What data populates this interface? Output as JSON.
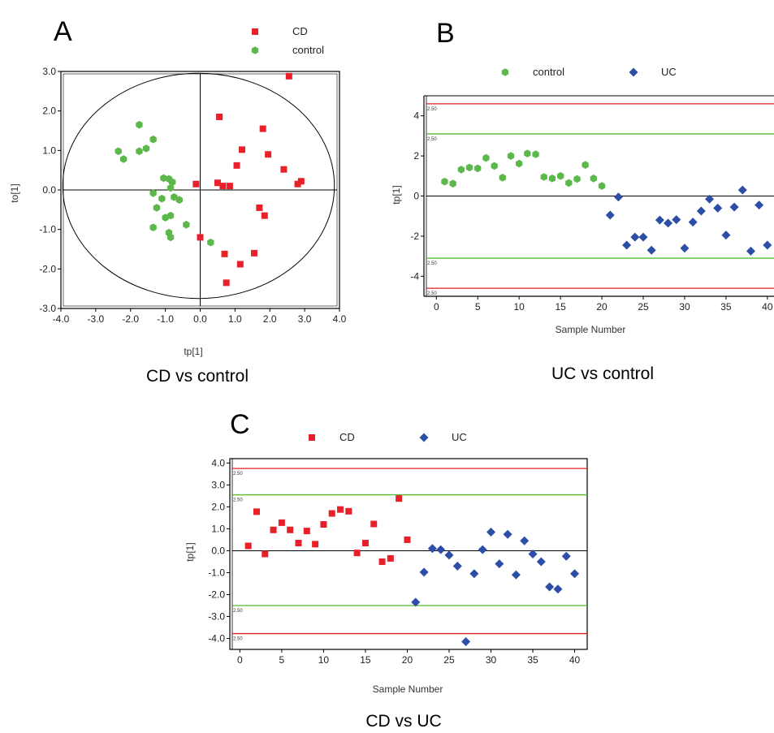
{
  "colors": {
    "CD": "#e8202a",
    "control": "#5cb84a",
    "UC": "#2d4ea6",
    "crit": "#e02020",
    "warn": "#55bb33"
  },
  "chart_data": [
    {
      "id": "A",
      "panel_label": "A",
      "caption": "CD vs control",
      "type": "scatter",
      "xlabel": "tp[1]",
      "ylabel": "to[1]",
      "xlim": [
        -4.0,
        4.0
      ],
      "ylim": [
        -3.0,
        3.0
      ],
      "xticks": [
        "-4.0",
        "-3.0",
        "-2.0",
        "-1.0",
        "0.0",
        "1.0",
        "2.0",
        "3.0",
        "4.0"
      ],
      "yticks": [
        "3.0",
        "2.0",
        "1.0",
        "0.0",
        "-1.0",
        "-2.0",
        "-3.0"
      ],
      "legend": [
        "CD",
        "control"
      ],
      "series": [
        {
          "name": "CD",
          "marker": "square",
          "points": [
            [
              2.55,
              2.88
            ],
            [
              0.55,
              1.85
            ],
            [
              1.8,
              1.55
            ],
            [
              1.2,
              1.02
            ],
            [
              1.95,
              0.9
            ],
            [
              1.05,
              0.62
            ],
            [
              2.4,
              0.52
            ],
            [
              2.9,
              0.22
            ],
            [
              2.8,
              0.15
            ],
            [
              0.5,
              0.18
            ],
            [
              0.65,
              0.1
            ],
            [
              0.85,
              0.1
            ],
            [
              -0.12,
              0.15
            ],
            [
              1.7,
              -0.45
            ],
            [
              1.85,
              -0.65
            ],
            [
              0.0,
              -1.2
            ],
            [
              0.7,
              -1.62
            ],
            [
              1.55,
              -1.6
            ],
            [
              1.15,
              -1.88
            ],
            [
              0.75,
              -2.35
            ]
          ]
        },
        {
          "name": "control",
          "marker": "hexagon",
          "points": [
            [
              -1.75,
              1.65
            ],
            [
              -1.35,
              1.28
            ],
            [
              -1.55,
              1.05
            ],
            [
              -1.75,
              0.98
            ],
            [
              -2.35,
              0.98
            ],
            [
              -2.2,
              0.78
            ],
            [
              -1.05,
              0.3
            ],
            [
              -0.9,
              0.28
            ],
            [
              -0.8,
              0.2
            ],
            [
              -0.85,
              0.05
            ],
            [
              -1.35,
              -0.08
            ],
            [
              -0.75,
              -0.18
            ],
            [
              -1.1,
              -0.22
            ],
            [
              -1.25,
              -0.45
            ],
            [
              -0.6,
              -0.25
            ],
            [
              -0.85,
              -0.65
            ],
            [
              -1.0,
              -0.7
            ],
            [
              -0.4,
              -0.88
            ],
            [
              -1.35,
              -0.95
            ],
            [
              -0.9,
              -1.08
            ],
            [
              -0.85,
              -1.2
            ],
            [
              0.3,
              -1.33
            ]
          ]
        }
      ]
    },
    {
      "id": "B",
      "panel_label": "B",
      "caption": "UC vs control",
      "type": "scatter",
      "xlabel": "Sample Number",
      "ylabel": "tp[1]",
      "xlim": [
        -1.5,
        40.8
      ],
      "ylim": [
        -5.0,
        5.0
      ],
      "xticks": [
        0,
        5,
        10,
        15,
        20,
        25,
        30,
        35,
        40
      ],
      "yticks": [
        4,
        2,
        0,
        -2,
        -4
      ],
      "legend": [
        "control",
        "UC"
      ],
      "red_lines": [
        4.6,
        -4.6
      ],
      "green_lines": [
        3.1,
        -3.1
      ],
      "line_marks": [
        "2.50",
        "2.50",
        "2.50",
        "2.50"
      ],
      "series": [
        {
          "name": "control",
          "marker": "hexagon",
          "points": [
            [
              1,
              0.72
            ],
            [
              2,
              0.62
            ],
            [
              3,
              1.32
            ],
            [
              4,
              1.42
            ],
            [
              5,
              1.38
            ],
            [
              6,
              1.9
            ],
            [
              7,
              1.5
            ],
            [
              8,
              0.92
            ],
            [
              9,
              2.0
            ],
            [
              10,
              1.62
            ],
            [
              11,
              2.12
            ],
            [
              12,
              2.08
            ],
            [
              13,
              0.95
            ],
            [
              14,
              0.88
            ],
            [
              15,
              1.0
            ],
            [
              16,
              0.65
            ],
            [
              17,
              0.85
            ],
            [
              18,
              1.55
            ],
            [
              19,
              0.88
            ],
            [
              20,
              0.5
            ]
          ]
        },
        {
          "name": "UC",
          "marker": "diamond",
          "points": [
            [
              21,
              -0.95
            ],
            [
              22,
              -0.05
            ],
            [
              23,
              -2.45
            ],
            [
              24,
              -2.05
            ],
            [
              25,
              -2.05
            ],
            [
              26,
              -2.7
            ],
            [
              27,
              -1.2
            ],
            [
              28,
              -1.35
            ],
            [
              29,
              -1.18
            ],
            [
              30,
              -2.6
            ],
            [
              31,
              -1.3
            ],
            [
              32,
              -0.75
            ],
            [
              33,
              -0.15
            ],
            [
              34,
              -0.6
            ],
            [
              35,
              -1.95
            ],
            [
              36,
              -0.55
            ],
            [
              37,
              0.3
            ],
            [
              38,
              -2.75
            ],
            [
              39,
              -0.45
            ],
            [
              40,
              -2.45
            ]
          ]
        }
      ]
    },
    {
      "id": "C",
      "panel_label": "C",
      "caption": "CD vs UC",
      "type": "scatter",
      "xlabel": "Sample Number",
      "ylabel": "tp[1]",
      "xlim": [
        -1.2,
        41.5
      ],
      "ylim": [
        -4.5,
        4.2
      ],
      "xticks": [
        0,
        5,
        10,
        15,
        20,
        25,
        30,
        35,
        40
      ],
      "yticks": [
        "4.0",
        "3.0",
        "2.0",
        "1.0",
        "0.0",
        "-1.0",
        "-2.0",
        "-3.0",
        "-4.0"
      ],
      "legend": [
        "CD",
        "UC"
      ],
      "red_lines": [
        3.75,
        -3.78
      ],
      "green_lines": [
        2.55,
        -2.5
      ],
      "line_marks": [
        "2.50",
        "2.50",
        "2.50",
        "2.50"
      ],
      "series": [
        {
          "name": "CD",
          "marker": "square",
          "points": [
            [
              1,
              0.22
            ],
            [
              2,
              1.78
            ],
            [
              3,
              -0.15
            ],
            [
              4,
              0.95
            ],
            [
              5,
              1.28
            ],
            [
              6,
              0.95
            ],
            [
              7,
              0.35
            ],
            [
              8,
              0.9
            ],
            [
              9,
              0.3
            ],
            [
              10,
              1.2
            ],
            [
              11,
              1.7
            ],
            [
              12,
              1.88
            ],
            [
              13,
              1.8
            ],
            [
              14,
              -0.1
            ],
            [
              15,
              0.35
            ],
            [
              16,
              1.22
            ],
            [
              17,
              -0.5
            ],
            [
              18,
              -0.35
            ],
            [
              19,
              2.38
            ],
            [
              20,
              0.5
            ]
          ]
        },
        {
          "name": "UC",
          "marker": "diamond",
          "points": [
            [
              21,
              -2.35
            ],
            [
              22,
              -0.98
            ],
            [
              23,
              0.1
            ],
            [
              24,
              0.05
            ],
            [
              25,
              -0.2
            ],
            [
              26,
              -0.7
            ],
            [
              27,
              -4.15
            ],
            [
              28,
              -1.05
            ],
            [
              29,
              0.05
            ],
            [
              30,
              0.85
            ],
            [
              31,
              -0.6
            ],
            [
              32,
              0.75
            ],
            [
              33,
              -1.1
            ],
            [
              34,
              0.45
            ],
            [
              35,
              -0.15
            ],
            [
              36,
              -0.5
            ],
            [
              37,
              -1.65
            ],
            [
              38,
              -1.75
            ],
            [
              39,
              -0.25
            ],
            [
              40,
              -1.05
            ]
          ]
        }
      ]
    }
  ]
}
